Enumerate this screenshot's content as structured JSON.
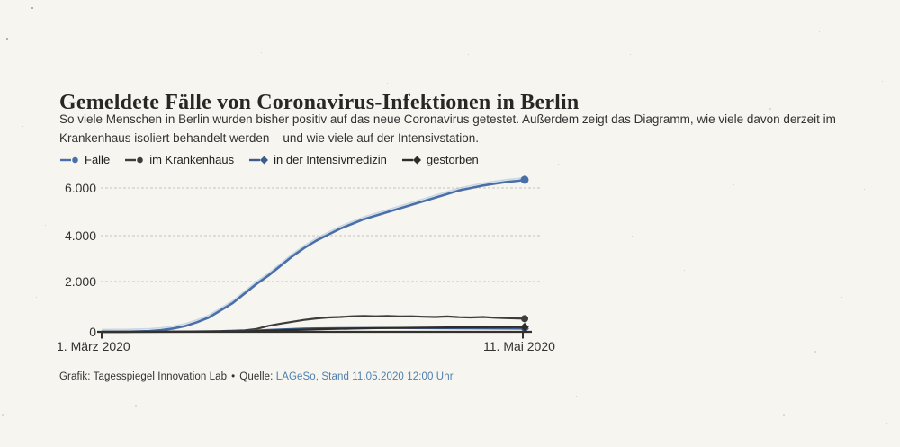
{
  "page": {
    "background_color": "#f7f5f0"
  },
  "header": {
    "title": "Gemeldete Fälle von Coronavirus-Infektionen in Berlin",
    "subtitle_line1": "So viele Menschen in Berlin wurden bisher positiv auf das neue Coronavirus getestet. Außerdem zeigt das Diagramm, wie viele davon derzeit im",
    "subtitle_line2": "Krankenhaus isoliert behandelt werden – und wie viele auf der Intensivstation."
  },
  "legend": [
    {
      "label": "Fälle",
      "color": "#4a6fa8",
      "marker": "circle"
    },
    {
      "label": "im Krankenhaus",
      "color": "#3f3d3b",
      "marker": "circle"
    },
    {
      "label": "in der Intensivmedizin",
      "color": "#3d5c8c",
      "marker": "diamond"
    },
    {
      "label": "gestorben",
      "color": "#2e2c2a",
      "marker": "diamond"
    }
  ],
  "footer": {
    "credit": "Grafik: Tagesspiegel Innovation Lab",
    "separator": "•",
    "source_label": "Quelle:",
    "source_link": "LAGeSo, Stand 11.05.2020 12:00 Uhr",
    "link_color": "#4e7fae"
  },
  "chart_data": {
    "type": "line",
    "title": "Gemeldete Fälle von Coronavirus-Infektionen in Berlin",
    "x_start_label": "1. März 2020",
    "x_end_label": "11. Mai 2020",
    "y_tick_labels": [
      "6.000",
      "4.000",
      "2.000",
      "0"
    ],
    "y_ticks": [
      6000,
      4000,
      2000,
      0
    ],
    "ylim": [
      0,
      6600
    ],
    "x_unit": "days since 1. März 2020",
    "x_range_days": [
      0,
      71
    ],
    "grid": true,
    "legend_position": "top",
    "axis_color": "#33312e",
    "grid_color": "#c6c3bc",
    "series": [
      {
        "name": "Fälle",
        "slug": "faelle",
        "color": "#4a6fa8",
        "marker": "circle",
        "points_day_value": [
          [
            0,
            0
          ],
          [
            4,
            5
          ],
          [
            8,
            30
          ],
          [
            10,
            70
          ],
          [
            12,
            140
          ],
          [
            14,
            240
          ],
          [
            16,
            400
          ],
          [
            18,
            600
          ],
          [
            20,
            900
          ],
          [
            22,
            1200
          ],
          [
            24,
            1600
          ],
          [
            26,
            2000
          ],
          [
            28,
            2350
          ],
          [
            30,
            2750
          ],
          [
            32,
            3150
          ],
          [
            34,
            3500
          ],
          [
            36,
            3800
          ],
          [
            38,
            4050
          ],
          [
            40,
            4300
          ],
          [
            42,
            4500
          ],
          [
            44,
            4700
          ],
          [
            46,
            4850
          ],
          [
            48,
            5000
          ],
          [
            50,
            5150
          ],
          [
            52,
            5300
          ],
          [
            54,
            5450
          ],
          [
            56,
            5600
          ],
          [
            58,
            5750
          ],
          [
            60,
            5900
          ],
          [
            62,
            6000
          ],
          [
            64,
            6100
          ],
          [
            66,
            6180
          ],
          [
            68,
            6250
          ],
          [
            70,
            6300
          ],
          [
            71,
            6340
          ]
        ]
      },
      {
        "name": "im Krankenhaus",
        "slug": "im-krankenhaus",
        "color": "#3f3d3b",
        "marker": "circle",
        "points_day_value": [
          [
            0,
            0
          ],
          [
            10,
            5
          ],
          [
            15,
            15
          ],
          [
            20,
            30
          ],
          [
            24,
            60
          ],
          [
            26,
            120
          ],
          [
            28,
            250
          ],
          [
            30,
            340
          ],
          [
            32,
            420
          ],
          [
            34,
            500
          ],
          [
            36,
            560
          ],
          [
            38,
            600
          ],
          [
            40,
            620
          ],
          [
            42,
            650
          ],
          [
            44,
            660
          ],
          [
            46,
            650
          ],
          [
            48,
            660
          ],
          [
            50,
            640
          ],
          [
            52,
            650
          ],
          [
            54,
            630
          ],
          [
            56,
            620
          ],
          [
            58,
            640
          ],
          [
            60,
            610
          ],
          [
            62,
            600
          ],
          [
            64,
            620
          ],
          [
            66,
            590
          ],
          [
            68,
            570
          ],
          [
            70,
            560
          ],
          [
            71,
            550
          ]
        ]
      },
      {
        "name": "in der Intensivmedizin",
        "slug": "intensivmedizin",
        "color": "#3d5c8c",
        "marker": "diamond",
        "points_day_value": [
          [
            0,
            0
          ],
          [
            15,
            5
          ],
          [
            20,
            15
          ],
          [
            25,
            40
          ],
          [
            28,
            80
          ],
          [
            30,
            100
          ],
          [
            32,
            120
          ],
          [
            34,
            135
          ],
          [
            36,
            145
          ],
          [
            40,
            155
          ],
          [
            44,
            160
          ],
          [
            48,
            160
          ],
          [
            52,
            155
          ],
          [
            56,
            150
          ],
          [
            60,
            145
          ],
          [
            64,
            140
          ],
          [
            68,
            135
          ],
          [
            71,
            130
          ]
        ]
      },
      {
        "name": "gestorben",
        "slug": "gestorben",
        "color": "#2e2c2a",
        "marker": "diamond",
        "points_day_value": [
          [
            0,
            0
          ],
          [
            18,
            5
          ],
          [
            22,
            15
          ],
          [
            26,
            35
          ],
          [
            30,
            60
          ],
          [
            34,
            90
          ],
          [
            38,
            115
          ],
          [
            42,
            135
          ],
          [
            46,
            152
          ],
          [
            50,
            165
          ],
          [
            54,
            175
          ],
          [
            58,
            184
          ],
          [
            62,
            190
          ],
          [
            66,
            195
          ],
          [
            70,
            199
          ],
          [
            71,
            200
          ]
        ]
      }
    ]
  }
}
